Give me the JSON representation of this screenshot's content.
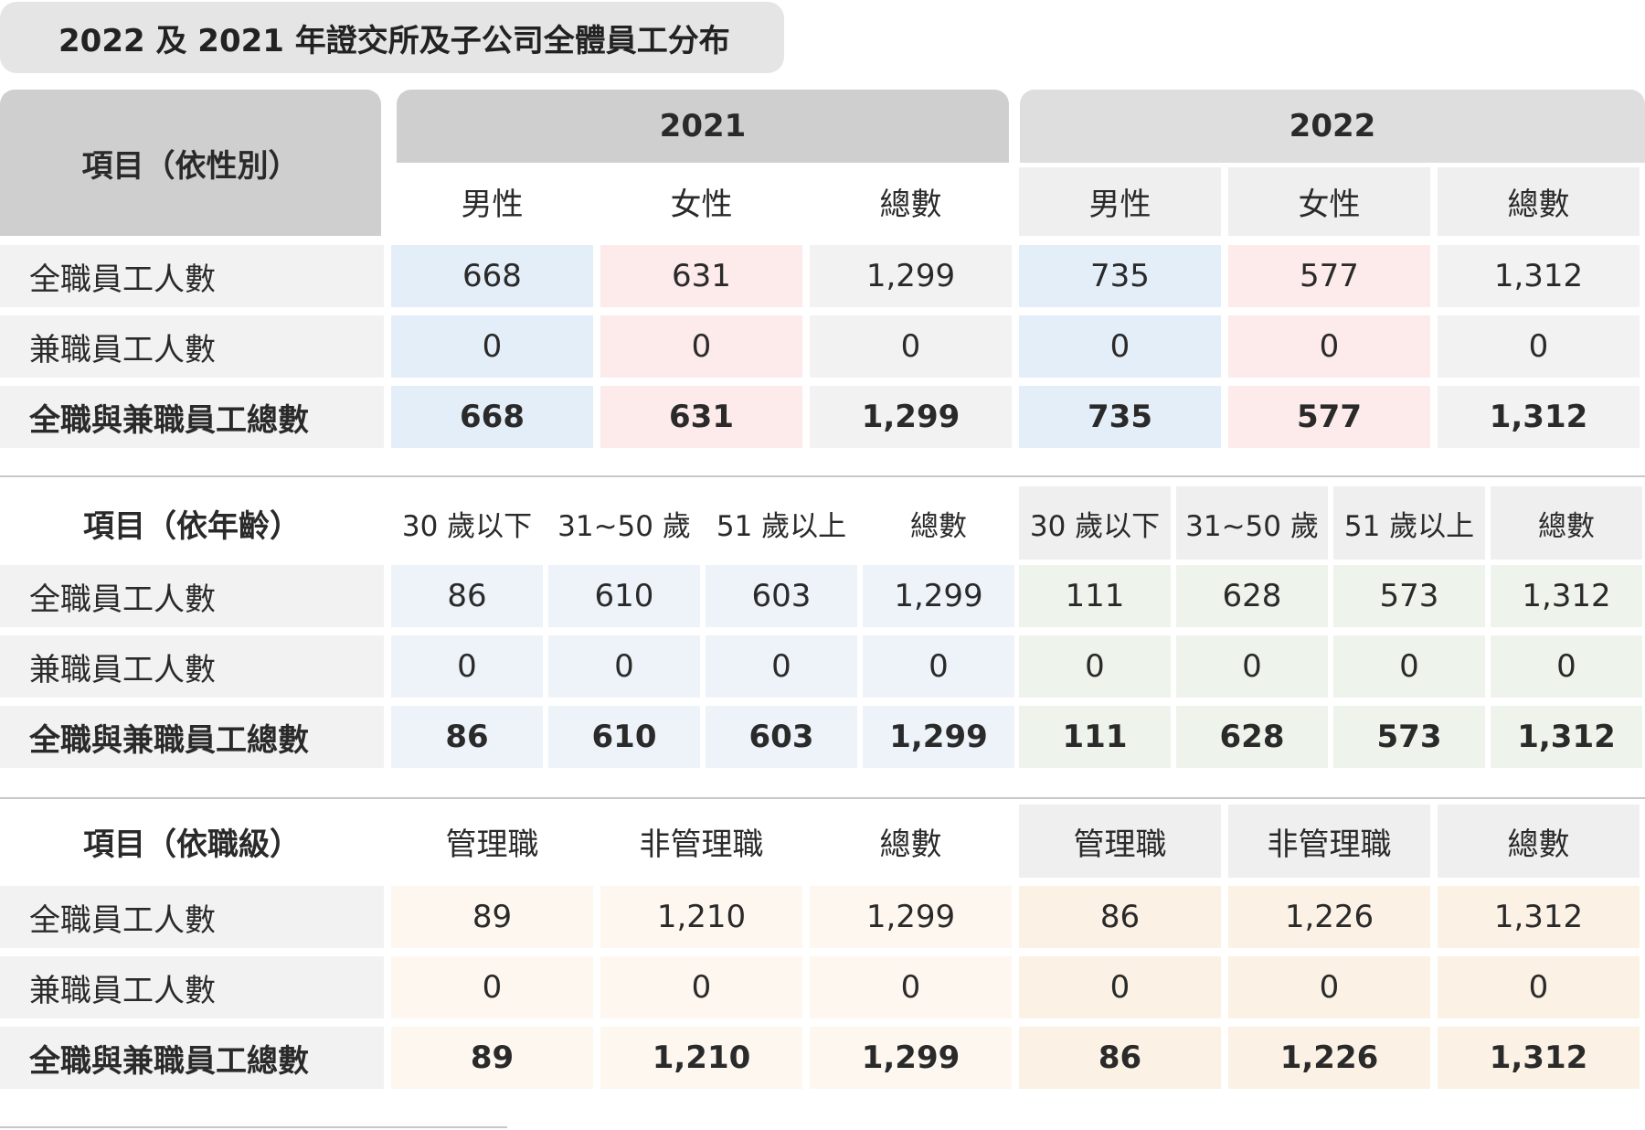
{
  "title": "2022 及 2021 年證交所及子公司全體員工分布",
  "years": [
    "2021",
    "2022"
  ],
  "colors": {
    "header_gray": "#cfcfcf",
    "header_light": "#dedede",
    "col_head_2022": "#efefef",
    "male_blue": "#e4eef8",
    "female_pink": "#fcebea",
    "total_gray": "#f2f2f2",
    "age_2021": "#edf3f9",
    "age_2022": "#eef4ec",
    "rank_2021": "#fdf7ef",
    "rank_2022": "#fbf1e5"
  },
  "gender": {
    "header": "項目（依性別）",
    "cols": [
      "男性",
      "女性",
      "總數",
      "男性",
      "女性",
      "總數"
    ],
    "rows": [
      {
        "label": "全職員工人數",
        "bold": false,
        "values": [
          "668",
          "631",
          "1,299",
          "735",
          "577",
          "1,312"
        ]
      },
      {
        "label": "兼職員工人數",
        "bold": false,
        "values": [
          "0",
          "0",
          "0",
          "0",
          "0",
          "0"
        ]
      },
      {
        "label": "全職與兼職員工總數",
        "bold": true,
        "values": [
          "668",
          "631",
          "1,299",
          "735",
          "577",
          "1,312"
        ]
      }
    ]
  },
  "age": {
    "header": "項目（依年齡）",
    "cols": [
      "30 歲以下",
      "31~50 歲",
      "51 歲以上",
      "總數",
      "30 歲以下",
      "31~50 歲",
      "51 歲以上",
      "總數"
    ],
    "rows": [
      {
        "label": "全職員工人數",
        "bold": false,
        "values": [
          "86",
          "610",
          "603",
          "1,299",
          "111",
          "628",
          "573",
          "1,312"
        ]
      },
      {
        "label": "兼職員工人數",
        "bold": false,
        "values": [
          "0",
          "0",
          "0",
          "0",
          "0",
          "0",
          "0",
          "0"
        ]
      },
      {
        "label": "全職與兼職員工總數",
        "bold": true,
        "values": [
          "86",
          "610",
          "603",
          "1,299",
          "111",
          "628",
          "573",
          "1,312"
        ]
      }
    ]
  },
  "rank": {
    "header": "項目（依職級）",
    "cols": [
      "管理職",
      "非管理職",
      "總數",
      "管理職",
      "非管理職",
      "總數"
    ],
    "rows": [
      {
        "label": "全職員工人數",
        "bold": false,
        "values": [
          "89",
          "1,210",
          "1,299",
          "86",
          "1,226",
          "1,312"
        ]
      },
      {
        "label": "兼職員工人數",
        "bold": false,
        "values": [
          "0",
          "0",
          "0",
          "0",
          "0",
          "0"
        ]
      },
      {
        "label": "全職與兼職員工總數",
        "bold": true,
        "values": [
          "89",
          "1,210",
          "1,299",
          "86",
          "1,226",
          "1,312"
        ]
      }
    ]
  }
}
